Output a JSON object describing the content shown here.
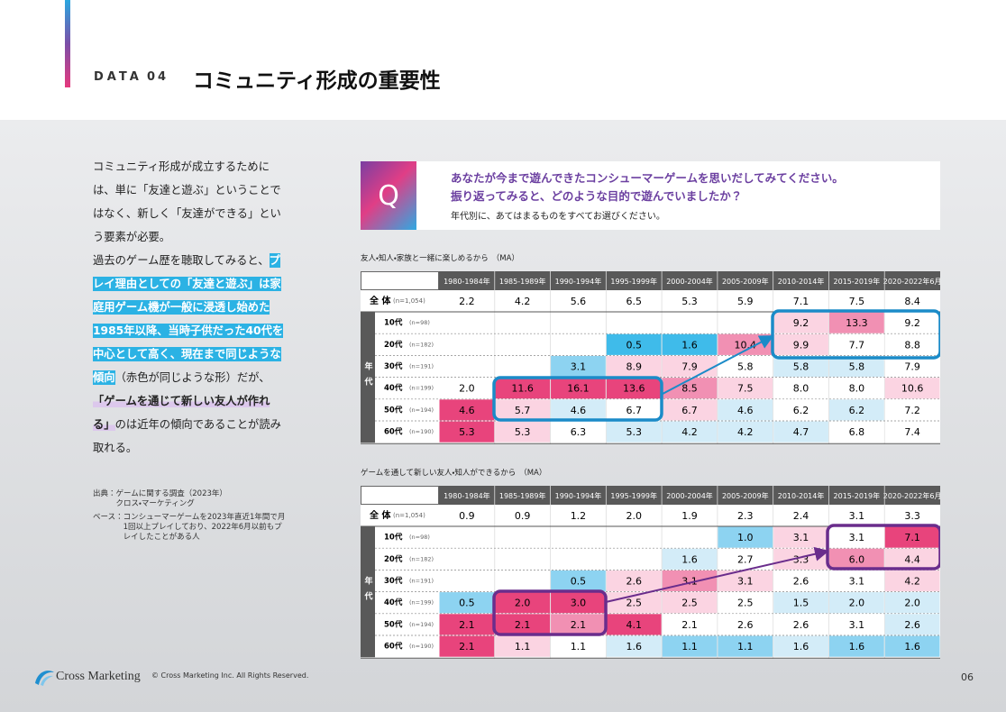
{
  "header": {
    "label": "DATA",
    "number": "04",
    "title": "コミュニティ形成の重要性"
  },
  "intro": {
    "paragraphs": [
      [
        {
          "text": "コミュニティ形成が成立するためには、単に「友達と遊ぶ」ということではなく、新しく「友達ができる」という要素が必要。",
          "style": "plain"
        }
      ],
      [
        {
          "text": "過去のゲーム歴を聴取してみると、",
          "style": "plain"
        },
        {
          "text": "プレイ理由としての「友達と遊ぶ」は家庭用ゲーム機が一般に浸透し始めた1985年以降、当時子供だった40代を中心として高く、現在まで同じような傾向",
          "style": "blue"
        },
        {
          "text": "（赤色が同じような形）だが、",
          "style": "plain"
        },
        {
          "text": "「ゲームを通じて新しい友人が作れる」",
          "style": "purple"
        },
        {
          "text": "のは近年の傾向であることが読み取れる。",
          "style": "plain"
        }
      ]
    ]
  },
  "notes": {
    "source_label": "出典：",
    "source": [
      "ゲームに関する調査（2023年）",
      "クロス・マーケティング"
    ],
    "base_label": "ベース：",
    "base": "コンシューマーゲームを2023年直近1年間で月1回以上プレイしており、2022年6月以前もプレイしたことがある人"
  },
  "question": {
    "mark": "Q",
    "lines": [
      "あなたが今まで遊んできたコンシューマーゲームを思いだしてみてください。",
      "振り返ってみると、どのような目的で遊んでいましたか？"
    ],
    "instruction": "年代別に、あてはまるものをすべてお選びください。"
  },
  "heat_colors": {
    "high3": "#e8447c",
    "high2": "#f190b3",
    "high1": "#fbd4e2",
    "low1": "#d3ecf8",
    "low2": "#8dd3f1",
    "low3": "#3fbbea"
  },
  "tables": [
    {
      "title": "友人・知人・家族と一緒に楽しめるから",
      "note": "（MA）",
      "columns": [
        "1980-1984年",
        "1985-1989年",
        "1990-1994年",
        "1995-1999年",
        "2000-2004年",
        "2005-2009年",
        "2010-2014年",
        "2015-2019年",
        "2020-2022年6月"
      ],
      "total": {
        "label": "全 体",
        "n": "(n=1,054)",
        "cells": [
          "2.2",
          "4.2",
          "5.6",
          "6.5",
          "5.3",
          "5.9",
          "7.1",
          "7.5",
          "8.4"
        ]
      },
      "group_label": "年代",
      "rows": [
        {
          "label": "10代",
          "n": "(n=98)",
          "cells": [
            null,
            null,
            null,
            null,
            null,
            null,
            "9.2",
            "13.3",
            "9.2"
          ]
        },
        {
          "label": "20代",
          "n": "(n=182)",
          "cells": [
            null,
            null,
            null,
            "0.5",
            "1.6",
            "10.4",
            "9.9",
            "7.7",
            "8.8"
          ]
        },
        {
          "label": "30代",
          "n": "(n=191)",
          "cells": [
            null,
            null,
            "3.1",
            "8.9",
            "7.9",
            "5.8",
            "5.8",
            "5.8",
            "7.9"
          ]
        },
        {
          "label": "40代",
          "n": "(n=199)",
          "cells": [
            "2.0",
            "11.6",
            "16.1",
            "13.6",
            "8.5",
            "7.5",
            "8.0",
            "8.0",
            "10.6"
          ]
        },
        {
          "label": "50代",
          "n": "(n=194)",
          "cells": [
            "4.6",
            "5.7",
            "4.6",
            "6.7",
            "6.7",
            "4.6",
            "6.2",
            "6.2",
            "7.2"
          ]
        },
        {
          "label": "60代",
          "n": "(n=190)",
          "cells": [
            "5.3",
            "5.3",
            "6.3",
            "5.3",
            "4.2",
            "4.2",
            "4.7",
            "6.8",
            "7.4"
          ]
        }
      ]
    },
    {
      "title": "ゲームを通して新しい友人・知人ができるから",
      "note": "（MA）",
      "columns": [
        "1980-1984年",
        "1985-1989年",
        "1990-1994年",
        "1995-1999年",
        "2000-2004年",
        "2005-2009年",
        "2010-2014年",
        "2015-2019年",
        "2020-2022年6月"
      ],
      "total": {
        "label": "全 体",
        "n": "(n=1,054)",
        "cells": [
          "0.9",
          "0.9",
          "1.2",
          "2.0",
          "1.9",
          "2.3",
          "2.4",
          "3.1",
          "3.3"
        ]
      },
      "group_label": "年代",
      "rows": [
        {
          "label": "10代",
          "n": "(n=98)",
          "cells": [
            null,
            null,
            null,
            null,
            null,
            "1.0",
            "3.1",
            "3.1",
            "7.1"
          ]
        },
        {
          "label": "20代",
          "n": "(n=182)",
          "cells": [
            null,
            null,
            null,
            null,
            "1.6",
            "2.7",
            "3.3",
            "6.0",
            "4.4"
          ]
        },
        {
          "label": "30代",
          "n": "(n=191)",
          "cells": [
            null,
            null,
            "0.5",
            "2.6",
            "3.1",
            "3.1",
            "2.6",
            "3.1",
            "4.2"
          ]
        },
        {
          "label": "40代",
          "n": "(n=199)",
          "cells": [
            "0.5",
            "2.0",
            "3.0",
            "2.5",
            "2.5",
            "2.5",
            "1.5",
            "2.0",
            "2.0"
          ]
        },
        {
          "label": "50代",
          "n": "(n=194)",
          "cells": [
            "2.1",
            "2.1",
            "2.1",
            "4.1",
            "2.1",
            "2.6",
            "2.6",
            "3.1",
            "2.6"
          ]
        },
        {
          "label": "60代",
          "n": "(n=190)",
          "cells": [
            "2.1",
            "1.1",
            "1.1",
            "1.6",
            "1.1",
            "1.1",
            "1.6",
            "1.6",
            "1.6"
          ]
        }
      ]
    }
  ],
  "footer": {
    "brand": "Cross Marketing",
    "copyright": "© Cross Marketing Inc. All Rights Reserved.",
    "page": "06"
  }
}
